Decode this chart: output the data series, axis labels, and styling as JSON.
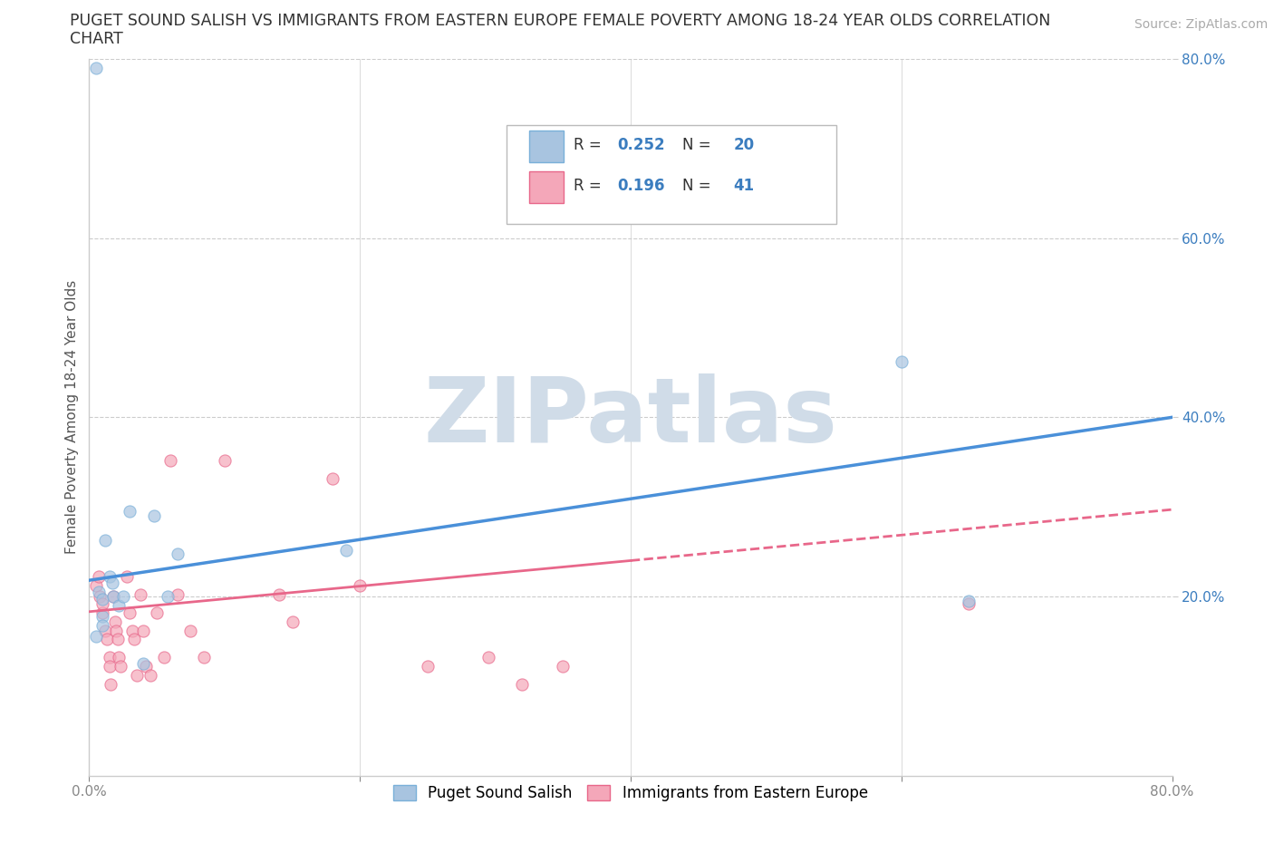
{
  "title_line1": "PUGET SOUND SALISH VS IMMIGRANTS FROM EASTERN EUROPE FEMALE POVERTY AMONG 18-24 YEAR OLDS CORRELATION",
  "title_line2": "CHART",
  "source": "Source: ZipAtlas.com",
  "ylabel": "Female Poverty Among 18-24 Year Olds",
  "xlim": [
    0.0,
    0.8
  ],
  "ylim": [
    0.0,
    0.8
  ],
  "x_ticks": [
    0.0,
    0.2,
    0.4,
    0.6,
    0.8
  ],
  "y_ticks": [
    0.2,
    0.4,
    0.6,
    0.8
  ],
  "x_tick_labels": [
    "0.0%",
    "",
    "",
    "",
    "80.0%"
  ],
  "y_tick_labels_right": [
    "20.0%",
    "40.0%",
    "60.0%",
    "80.0%"
  ],
  "group1_name": "Puget Sound Salish",
  "group1_color": "#a8c4e0",
  "group1_edge_color": "#7ab0d9",
  "group1_line_color": "#4a90d9",
  "group1_R": 0.252,
  "group1_N": 20,
  "group2_name": "Immigrants from Eastern Europe",
  "group2_color": "#f4a7b9",
  "group2_edge_color": "#e8678a",
  "group2_line_color": "#e8678a",
  "group2_R": 0.196,
  "group2_N": 41,
  "legend_color": "#3b7dbf",
  "watermark": "ZIPatlas",
  "watermark_color": "#d0dce8",
  "group1_scatter": [
    [
      0.005,
      0.79
    ],
    [
      0.005,
      0.155
    ],
    [
      0.007,
      0.205
    ],
    [
      0.01,
      0.197
    ],
    [
      0.01,
      0.178
    ],
    [
      0.01,
      0.168
    ],
    [
      0.012,
      0.263
    ],
    [
      0.015,
      0.222
    ],
    [
      0.017,
      0.215
    ],
    [
      0.018,
      0.2
    ],
    [
      0.022,
      0.19
    ],
    [
      0.025,
      0.2
    ],
    [
      0.03,
      0.295
    ],
    [
      0.04,
      0.125
    ],
    [
      0.048,
      0.29
    ],
    [
      0.058,
      0.2
    ],
    [
      0.065,
      0.248
    ],
    [
      0.19,
      0.252
    ],
    [
      0.6,
      0.462
    ],
    [
      0.65,
      0.195
    ]
  ],
  "group2_scatter": [
    [
      0.005,
      0.212
    ],
    [
      0.007,
      0.222
    ],
    [
      0.008,
      0.2
    ],
    [
      0.01,
      0.182
    ],
    [
      0.01,
      0.192
    ],
    [
      0.012,
      0.162
    ],
    [
      0.013,
      0.152
    ],
    [
      0.015,
      0.132
    ],
    [
      0.015,
      0.122
    ],
    [
      0.016,
      0.102
    ],
    [
      0.018,
      0.2
    ],
    [
      0.019,
      0.172
    ],
    [
      0.02,
      0.162
    ],
    [
      0.021,
      0.152
    ],
    [
      0.022,
      0.132
    ],
    [
      0.023,
      0.122
    ],
    [
      0.028,
      0.222
    ],
    [
      0.03,
      0.182
    ],
    [
      0.032,
      0.162
    ],
    [
      0.033,
      0.152
    ],
    [
      0.035,
      0.112
    ],
    [
      0.038,
      0.202
    ],
    [
      0.04,
      0.162
    ],
    [
      0.042,
      0.122
    ],
    [
      0.045,
      0.112
    ],
    [
      0.05,
      0.182
    ],
    [
      0.055,
      0.132
    ],
    [
      0.06,
      0.352
    ],
    [
      0.065,
      0.202
    ],
    [
      0.075,
      0.162
    ],
    [
      0.085,
      0.132
    ],
    [
      0.1,
      0.352
    ],
    [
      0.14,
      0.202
    ],
    [
      0.15,
      0.172
    ],
    [
      0.18,
      0.332
    ],
    [
      0.2,
      0.212
    ],
    [
      0.25,
      0.122
    ],
    [
      0.295,
      0.132
    ],
    [
      0.32,
      0.102
    ],
    [
      0.35,
      0.122
    ],
    [
      0.65,
      0.192
    ]
  ],
  "group1_line": {
    "x0": 0.0,
    "y0": 0.218,
    "x1": 0.8,
    "y1": 0.4
  },
  "group2_line_solid": {
    "x0": 0.0,
    "y0": 0.183,
    "x1": 0.4,
    "y1": 0.24
  },
  "group2_line_dashed": {
    "x0": 0.4,
    "y0": 0.24,
    "x1": 0.8,
    "y1": 0.297
  },
  "background_color": "#ffffff",
  "grid_color": "#cccccc",
  "tick_color": "#888888",
  "marker_size": 90,
  "marker_alpha": 0.7
}
